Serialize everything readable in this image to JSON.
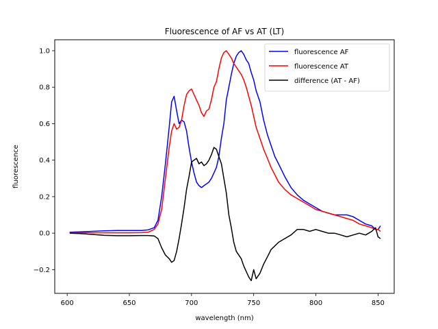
{
  "chart_data": {
    "type": "line",
    "title": "Fluorescence of AF vs AT (LT)",
    "xlabel": "wavelength (nm)",
    "ylabel": "fluorescence",
    "xlim": [
      590,
      863
    ],
    "ylim": [
      -0.33,
      1.06
    ],
    "xticks": [
      600,
      650,
      700,
      750,
      800,
      850
    ],
    "xtick_labels": [
      "600",
      "650",
      "700",
      "750",
      "800",
      "850"
    ],
    "yticks": [
      -0.2,
      0.0,
      0.2,
      0.4,
      0.6,
      0.8,
      1.0
    ],
    "ytick_labels": [
      "−0.2",
      "0.0",
      "0.2",
      "0.4",
      "0.6",
      "0.8",
      "1.0"
    ],
    "grid": false,
    "legend_position": "top-right",
    "series": [
      {
        "name": "fluorescence AF",
        "color": "#0000ff",
        "x": [
          602,
          610,
          620,
          630,
          640,
          650,
          660,
          665,
          670,
          673,
          676,
          679,
          682,
          684,
          686,
          688,
          690,
          692,
          694,
          696,
          698,
          700,
          702,
          704,
          706,
          708,
          710,
          712,
          714,
          716,
          718,
          720,
          722,
          724,
          726,
          728,
          730,
          732,
          734,
          736,
          738,
          740,
          742,
          744,
          746,
          748,
          750,
          752,
          755,
          758,
          761,
          764,
          767,
          770,
          775,
          780,
          785,
          790,
          795,
          800,
          805,
          810,
          815,
          820,
          825,
          830,
          835,
          840,
          845,
          848,
          850,
          852
        ],
        "y": [
          0.005,
          0.007,
          0.01,
          0.013,
          0.015,
          0.015,
          0.015,
          0.018,
          0.03,
          0.07,
          0.2,
          0.38,
          0.58,
          0.72,
          0.75,
          0.67,
          0.6,
          0.62,
          0.61,
          0.56,
          0.47,
          0.39,
          0.33,
          0.28,
          0.26,
          0.25,
          0.26,
          0.27,
          0.28,
          0.3,
          0.33,
          0.36,
          0.42,
          0.52,
          0.6,
          0.73,
          0.8,
          0.87,
          0.93,
          0.97,
          0.99,
          1.0,
          0.98,
          0.95,
          0.93,
          0.88,
          0.84,
          0.78,
          0.72,
          0.62,
          0.54,
          0.48,
          0.42,
          0.38,
          0.31,
          0.25,
          0.21,
          0.18,
          0.16,
          0.14,
          0.12,
          0.11,
          0.1,
          0.1,
          0.1,
          0.09,
          0.07,
          0.05,
          0.04,
          0.02,
          0.02,
          0.04
        ]
      },
      {
        "name": "fluorescence AT",
        "color": "#ff0000",
        "x": [
          602,
          610,
          620,
          630,
          640,
          650,
          660,
          665,
          670,
          673,
          676,
          679,
          682,
          684,
          686,
          688,
          690,
          692,
          694,
          696,
          698,
          700,
          702,
          704,
          706,
          708,
          710,
          712,
          714,
          716,
          718,
          720,
          722,
          724,
          726,
          728,
          730,
          732,
          734,
          736,
          738,
          740,
          742,
          744,
          746,
          748,
          750,
          752,
          755,
          758,
          761,
          764,
          767,
          770,
          775,
          780,
          785,
          790,
          795,
          800,
          805,
          810,
          815,
          820,
          825,
          830,
          835,
          840,
          845,
          848,
          850,
          852
        ],
        "y": [
          0.003,
          0.003,
          0.002,
          0.002,
          0.002,
          0.002,
          0.003,
          0.005,
          0.02,
          0.05,
          0.13,
          0.3,
          0.47,
          0.56,
          0.6,
          0.57,
          0.58,
          0.62,
          0.7,
          0.76,
          0.78,
          0.79,
          0.76,
          0.73,
          0.7,
          0.66,
          0.64,
          0.67,
          0.68,
          0.73,
          0.8,
          0.83,
          0.9,
          0.96,
          0.99,
          1.0,
          0.98,
          0.96,
          0.93,
          0.91,
          0.89,
          0.87,
          0.84,
          0.8,
          0.75,
          0.7,
          0.64,
          0.58,
          0.52,
          0.46,
          0.41,
          0.36,
          0.32,
          0.28,
          0.24,
          0.21,
          0.19,
          0.17,
          0.15,
          0.13,
          0.12,
          0.11,
          0.1,
          0.09,
          0.08,
          0.07,
          0.05,
          0.04,
          0.03,
          0.02,
          0.02,
          0.01
        ]
      },
      {
        "name": "difference (AT - AF)",
        "color": "#000000",
        "x": [
          602,
          610,
          620,
          630,
          640,
          650,
          660,
          665,
          670,
          673,
          676,
          679,
          682,
          684,
          686,
          688,
          690,
          692,
          694,
          696,
          698,
          700,
          702,
          704,
          706,
          708,
          710,
          712,
          714,
          716,
          718,
          720,
          722,
          724,
          726,
          728,
          730,
          732,
          734,
          736,
          738,
          740,
          742,
          744,
          746,
          748,
          750,
          752,
          755,
          758,
          761,
          764,
          767,
          770,
          775,
          780,
          785,
          790,
          795,
          800,
          805,
          810,
          815,
          820,
          825,
          830,
          835,
          840,
          845,
          848,
          850,
          852
        ],
        "y": [
          0.0,
          -0.002,
          -0.007,
          -0.012,
          -0.014,
          -0.014,
          -0.013,
          -0.013,
          -0.015,
          -0.03,
          -0.08,
          -0.12,
          -0.14,
          -0.16,
          -0.15,
          -0.1,
          -0.03,
          0.05,
          0.14,
          0.24,
          0.31,
          0.39,
          0.4,
          0.41,
          0.38,
          0.39,
          0.37,
          0.38,
          0.4,
          0.43,
          0.47,
          0.46,
          0.42,
          0.38,
          0.3,
          0.22,
          0.1,
          0.03,
          -0.05,
          -0.1,
          -0.12,
          -0.14,
          -0.18,
          -0.21,
          -0.24,
          -0.26,
          -0.2,
          -0.25,
          -0.22,
          -0.17,
          -0.13,
          -0.09,
          -0.07,
          -0.05,
          -0.03,
          -0.01,
          0.02,
          0.02,
          0.01,
          0.02,
          0.01,
          0.0,
          0.0,
          -0.01,
          -0.02,
          -0.01,
          0.0,
          -0.01,
          0.01,
          0.03,
          -0.02,
          -0.03
        ]
      }
    ]
  }
}
